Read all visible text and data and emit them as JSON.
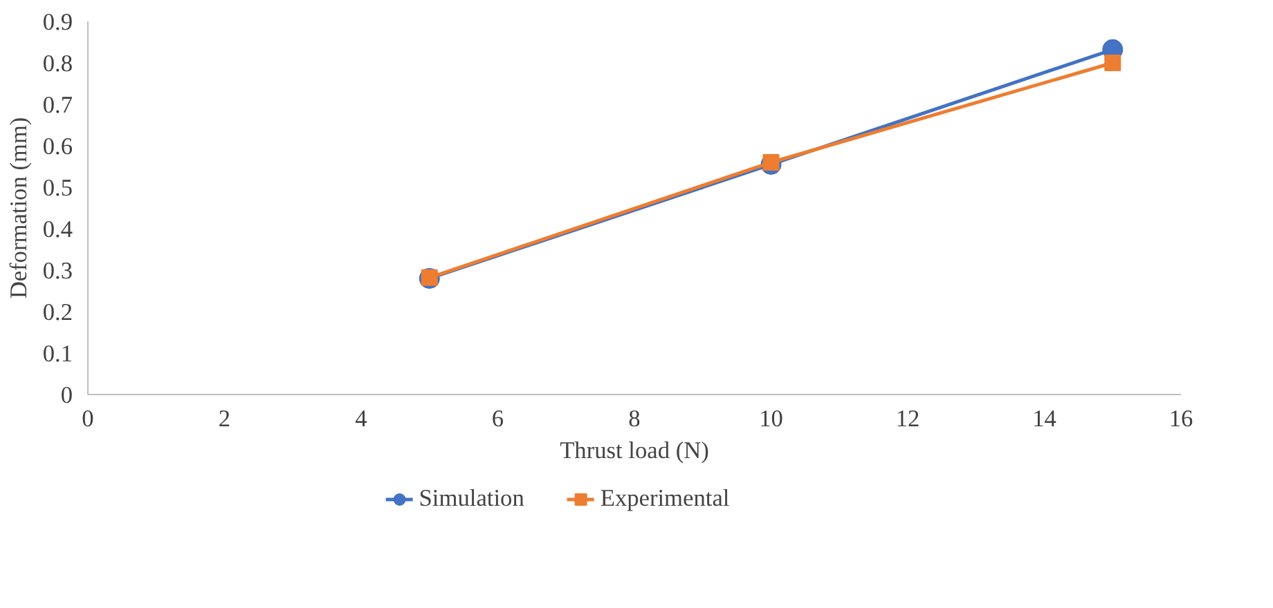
{
  "chart_data": {
    "type": "line",
    "xlabel": "Thrust load (N)",
    "ylabel": "Deformation (mm)",
    "x": [
      5,
      10,
      15
    ],
    "series": [
      {
        "name": "Simulation",
        "color": "#4472c4",
        "values": [
          0.28,
          0.555,
          0.832
        ],
        "marker": "circle"
      },
      {
        "name": "Experimental",
        "color": "#ed7d31",
        "values": [
          0.282,
          0.56,
          0.8
        ],
        "marker": "square"
      }
    ],
    "xlim": [
      0,
      16
    ],
    "xticks": [
      0,
      2,
      4,
      6,
      8,
      10,
      12,
      14,
      16
    ],
    "ylim": [
      0,
      0.9
    ],
    "yticks": [
      0,
      0.1,
      0.2,
      0.3,
      0.4,
      0.5,
      0.6,
      0.7,
      0.8,
      0.9
    ],
    "grid": false,
    "legend": "bottom",
    "line_style": "solid"
  }
}
